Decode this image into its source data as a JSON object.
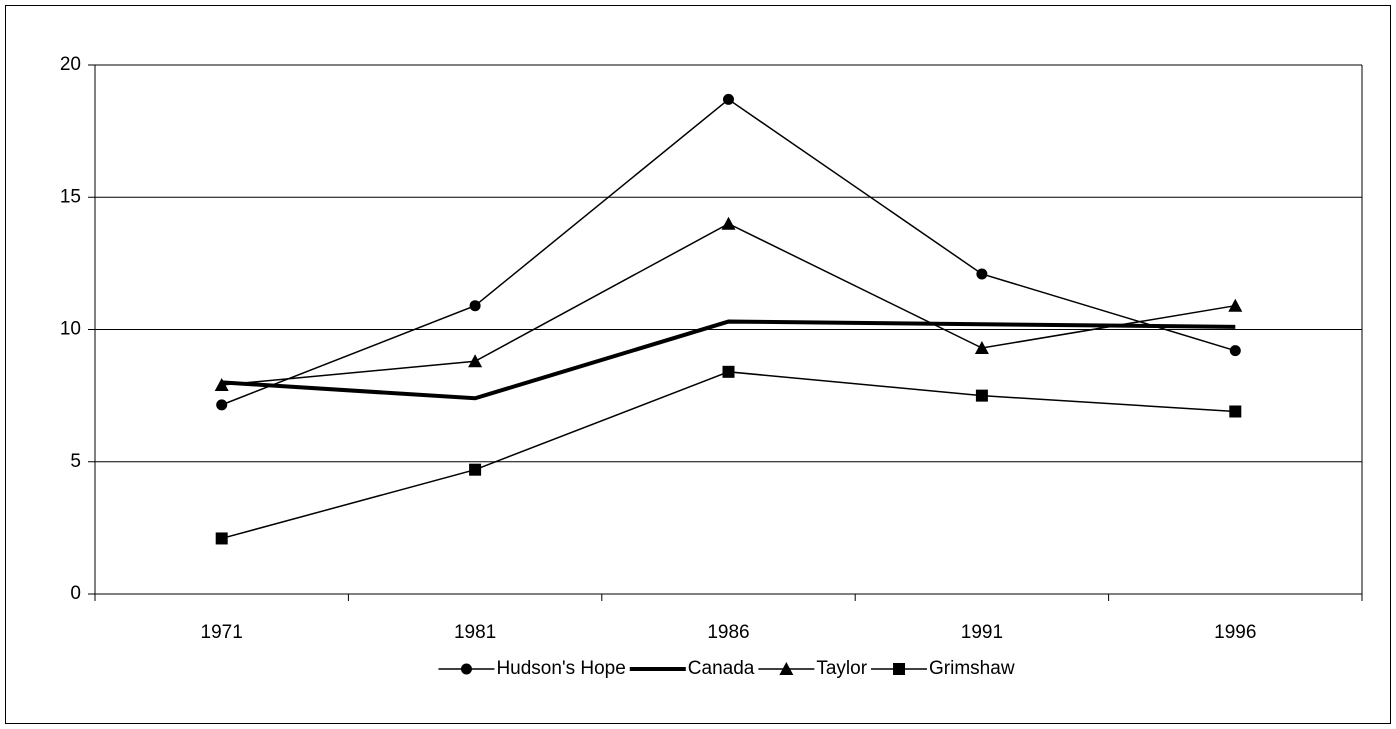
{
  "chart_data": {
    "type": "line",
    "categories": [
      "1971",
      "1981",
      "1986",
      "1991",
      "1996"
    ],
    "series": [
      {
        "name": "Hudson's Hope",
        "color": "#000000",
        "marker": "circle",
        "line_width": 1.5,
        "values": [
          7.15,
          10.9,
          18.7,
          12.1,
          9.2
        ]
      },
      {
        "name": "Canada",
        "color": "#000000",
        "marker": "none",
        "line_width": 4,
        "values": [
          8.0,
          7.4,
          10.3,
          10.2,
          10.1
        ]
      },
      {
        "name": "Taylor",
        "color": "#000000",
        "marker": "triangle",
        "line_width": 1.5,
        "values": [
          7.9,
          8.8,
          14.0,
          9.3,
          10.9
        ]
      },
      {
        "name": "Grimshaw",
        "color": "#000000",
        "marker": "square",
        "line_width": 1.5,
        "values": [
          2.1,
          4.7,
          8.4,
          7.5,
          6.9
        ]
      }
    ],
    "ylim": [
      0,
      20
    ],
    "yticks": [
      0,
      5,
      10,
      15,
      20
    ],
    "grid": true,
    "legend": "bottom"
  }
}
